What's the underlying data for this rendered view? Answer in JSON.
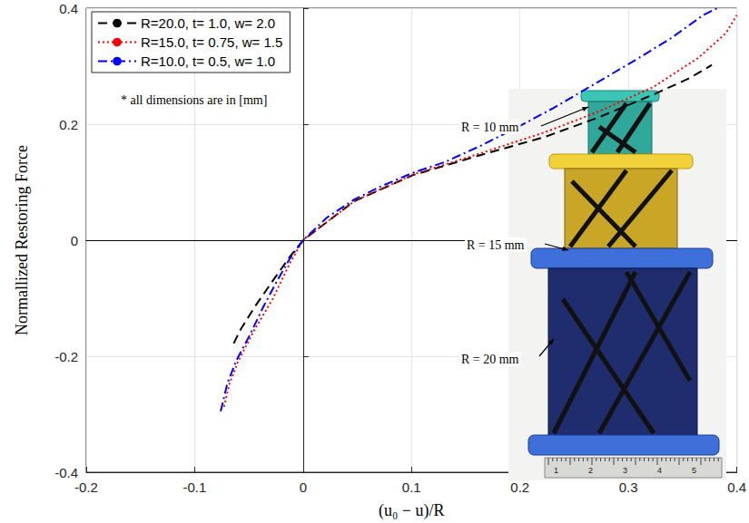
{
  "chart_data": {
    "type": "line",
    "x_label": "(u₀ − u)/R",
    "y_label": "Normallized Restoring Force",
    "xlim": [
      -0.2,
      0.4
    ],
    "xticks": [
      -0.2,
      -0.1,
      0,
      0.1,
      0.2,
      0.3,
      0.4
    ],
    "ylim": [
      -0.4,
      0.4
    ],
    "yticks": [
      -0.4,
      -0.2,
      0,
      0.2,
      0.4
    ],
    "grid": true,
    "legend": "upper left",
    "annotations": [
      "* all dimensions are in [mm]"
    ],
    "inset_labels": [
      "R = 10 mm",
      "R = 15 mm",
      "R = 20 mm"
    ],
    "ruler_labels": [
      "1",
      "2",
      "3",
      "4",
      "5"
    ],
    "series": [
      {
        "name": "R=20.0, t= 1.0, w= 2.0",
        "color": "#000000",
        "line_style": "dashed",
        "x": [
          -0.064,
          -0.058,
          -0.045,
          -0.028,
          -0.012,
          0,
          0.047,
          0.101,
          0.164,
          0.223,
          0.273,
          0.323,
          0.356,
          0.377
        ],
        "values": [
          -0.178,
          -0.155,
          -0.116,
          -0.07,
          -0.028,
          0,
          0.067,
          0.112,
          0.147,
          0.178,
          0.212,
          0.251,
          0.279,
          0.302
        ]
      },
      {
        "name": "R=15.0, t= 0.75, w= 1.5",
        "color": "#ff0000",
        "line_style": "dotted",
        "x": [
          -0.073,
          -0.068,
          -0.06,
          -0.045,
          -0.028,
          -0.012,
          0,
          0.047,
          0.101,
          0.164,
          0.223,
          0.273,
          0.323,
          0.365,
          0.39,
          0.4
        ],
        "values": [
          -0.287,
          -0.248,
          -0.209,
          -0.155,
          -0.101,
          -0.039,
          0,
          0.067,
          0.113,
          0.15,
          0.186,
          0.222,
          0.264,
          0.315,
          0.357,
          0.388
        ]
      },
      {
        "name": "R=10.0, t= 0.5, w= 1.0",
        "color": "#0000ff",
        "line_style": "dashdot",
        "x": [
          -0.076,
          -0.07,
          -0.062,
          -0.049,
          -0.037,
          -0.024,
          -0.012,
          0,
          0.022,
          0.047,
          0.072,
          0.101,
          0.131,
          0.164,
          0.197,
          0.231,
          0.264,
          0.306,
          0.34,
          0.369,
          0.382
        ],
        "values": [
          -0.295,
          -0.248,
          -0.209,
          -0.163,
          -0.116,
          -0.07,
          -0.031,
          0,
          0.039,
          0.07,
          0.093,
          0.116,
          0.135,
          0.163,
          0.194,
          0.228,
          0.264,
          0.31,
          0.349,
          0.388,
          0.4
        ]
      }
    ]
  }
}
